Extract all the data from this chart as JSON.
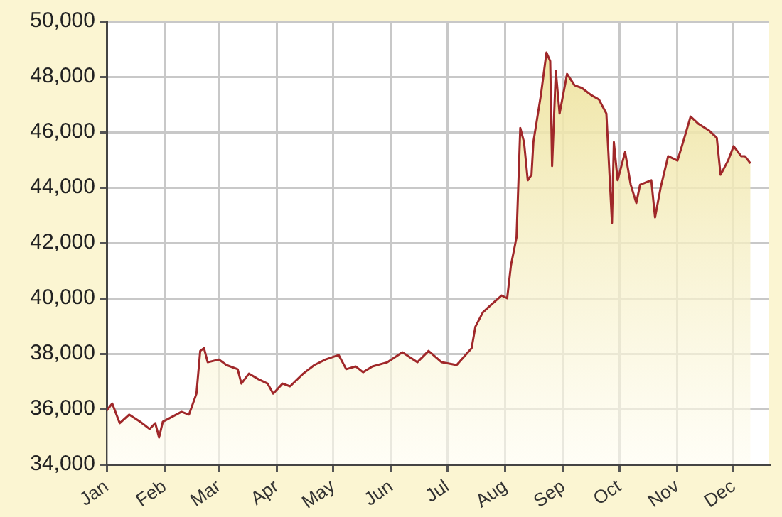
{
  "chart_data": {
    "type": "area",
    "x": [
      "--01-01",
      "--01-04",
      "--01-08",
      "--01-13",
      "--01-19",
      "--01-24",
      "--01-27",
      "--01-29",
      "--01-31",
      "--02-10",
      "--02-14",
      "--02-18",
      "--02-20",
      "--02-22",
      "--02-24",
      "--03-01",
      "--03-05",
      "--03-11",
      "--03-13",
      "--03-17",
      "--03-22",
      "--03-27",
      "--03-30",
      "--04-04",
      "--04-08",
      "--04-15",
      "--04-21",
      "--04-27",
      "--05-04",
      "--05-08",
      "--05-13",
      "--05-17",
      "--05-22",
      "--05-30",
      "--06-07",
      "--06-15",
      "--06-21",
      "--06-28",
      "--07-06",
      "--07-14",
      "--07-16",
      "--07-20",
      "--07-24",
      "--07-30",
      "--08-02",
      "--08-04",
      "--08-07",
      "--08-09",
      "--08-11",
      "--08-13",
      "--08-15",
      "--08-16",
      "--08-20",
      "--08-23",
      "--08-25",
      "--08-26",
      "--08-28",
      "--08-30",
      "--09-03",
      "--09-07",
      "--09-11",
      "--09-16",
      "--09-20",
      "--09-24",
      "--09-27",
      "--09-28",
      "--09-30",
      "--10-04",
      "--10-07",
      "--10-10",
      "--10-12",
      "--10-18",
      "--10-20",
      "--10-23",
      "--10-27",
      "--11-01",
      "--11-04",
      "--11-08",
      "--11-12",
      "--11-18",
      "--11-22",
      "--11-24",
      "--11-28",
      "--12-01",
      "--12-05",
      "--12-07",
      "--12-10"
    ],
    "series": [
      {
        "color": "#a0282a",
        "values": [
          35950,
          36200,
          35490,
          35800,
          35540,
          35280,
          35490,
          34970,
          35540,
          35900,
          35800,
          36560,
          38100,
          38200,
          37690,
          37790,
          37590,
          37440,
          36920,
          37280,
          37080,
          36920,
          36560,
          36920,
          36820,
          37280,
          37590,
          37790,
          37950,
          37440,
          37540,
          37330,
          37540,
          37690,
          38050,
          37690,
          38100,
          37690,
          37590,
          38200,
          38970,
          39490,
          39740,
          40100,
          40000,
          41180,
          42200,
          46150,
          45640,
          44260,
          44460,
          45640,
          47330,
          48870,
          48560,
          44770,
          48200,
          46670,
          48100,
          47690,
          47590,
          47330,
          47180,
          46670,
          42720,
          45640,
          44260,
          45280,
          44100,
          43440,
          44100,
          44260,
          42920,
          44000,
          45130,
          44970,
          45640,
          46560,
          46310,
          46050,
          45790,
          44460,
          44970,
          45490,
          45130,
          45130,
          44870
        ]
      }
    ],
    "xlim": [
      "--01-01",
      "--12-20"
    ],
    "xticks": [
      {
        "value": "--01-01",
        "label": "Jan"
      },
      {
        "value": "--02-01",
        "label": "Feb"
      },
      {
        "value": "--03-01",
        "label": "Mar"
      },
      {
        "value": "--04-01",
        "label": "Apr"
      },
      {
        "value": "--05-01",
        "label": "May"
      },
      {
        "value": "--06-01",
        "label": "Jun"
      },
      {
        "value": "--07-01",
        "label": "Jul"
      },
      {
        "value": "--08-01",
        "label": "Aug"
      },
      {
        "value": "--09-01",
        "label": "Sep"
      },
      {
        "value": "--10-01",
        "label": "Oct"
      },
      {
        "value": "--11-01",
        "label": "Nov"
      },
      {
        "value": "--12-01",
        "label": "Dec"
      }
    ],
    "ylim": [
      34000,
      50000
    ],
    "yticks": [
      {
        "value": 34000,
        "label": "34,000"
      },
      {
        "value": 36000,
        "label": "36,000"
      },
      {
        "value": 38000,
        "label": "38,000"
      },
      {
        "value": 40000,
        "label": "40,000"
      },
      {
        "value": 42000,
        "label": "42,000"
      },
      {
        "value": 44000,
        "label": "44,000"
      },
      {
        "value": 46000,
        "label": "46,000"
      },
      {
        "value": 48000,
        "label": "48,000"
      },
      {
        "value": 50000,
        "label": "50,000"
      }
    ],
    "grid": true,
    "legend": false,
    "marker": "none",
    "line_style": "solid"
  }
}
